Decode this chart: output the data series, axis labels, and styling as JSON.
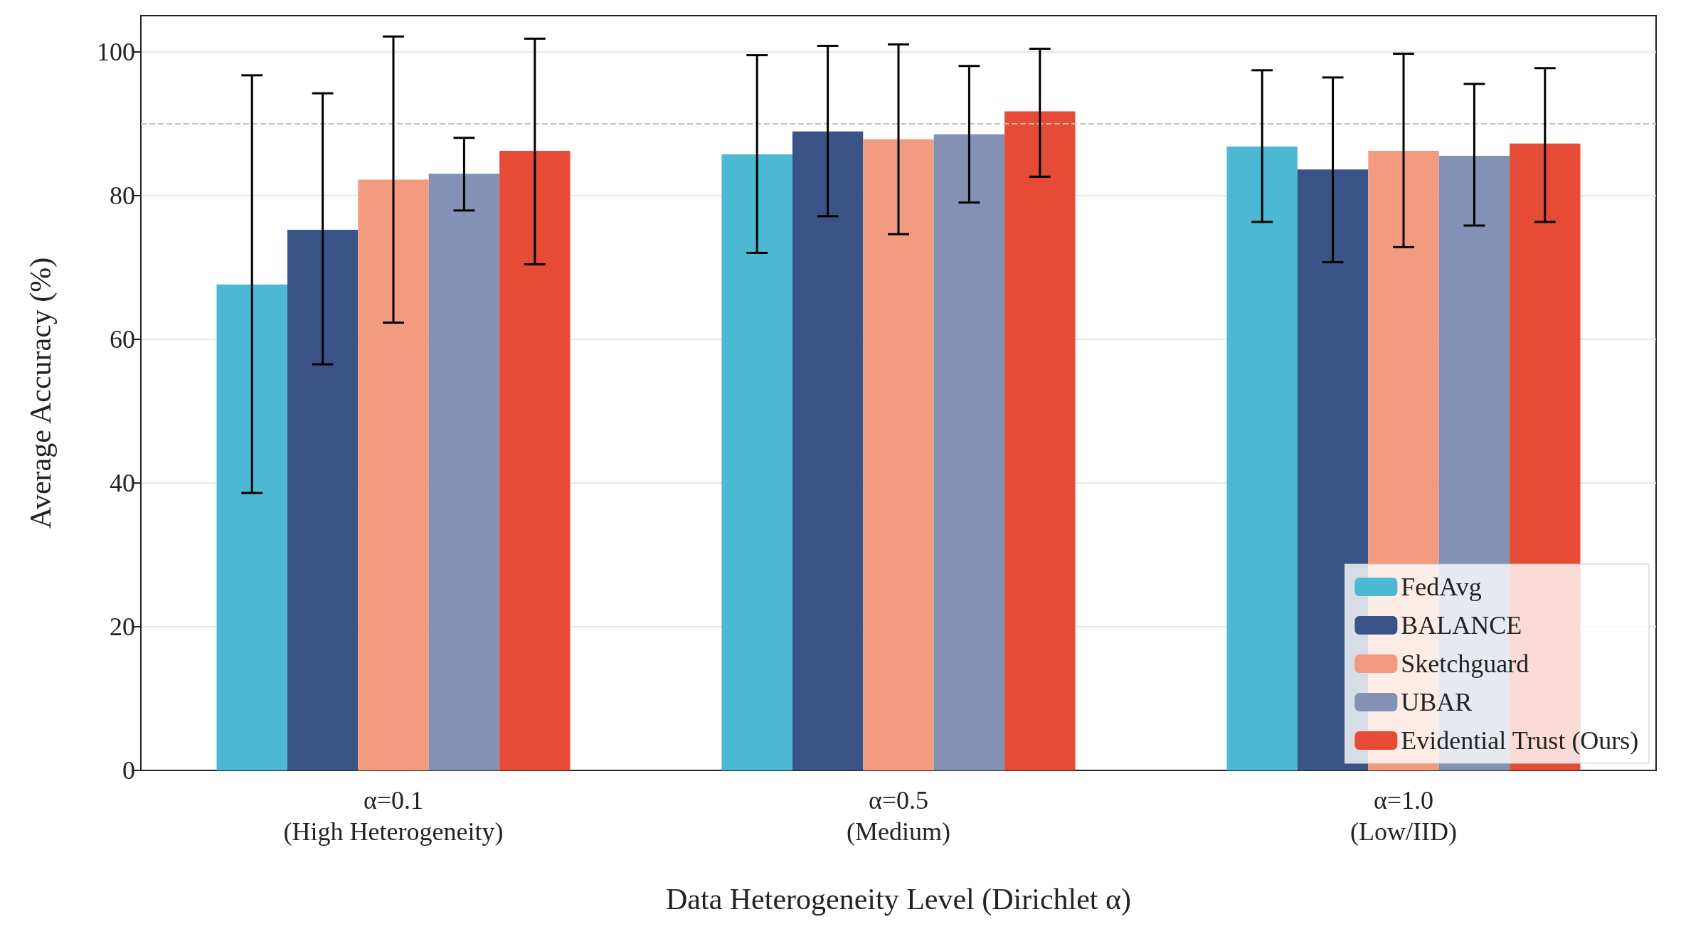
{
  "chart_data": {
    "type": "bar",
    "xlabel": "Data Heterogeneity Level (Dirichlet α)",
    "ylabel": "Average Accuracy (%)",
    "categories": [
      "α=0.1\n(High Heterogeneity)",
      "α=0.5\n(Medium)",
      "α=1.0\n(Low/IID)"
    ],
    "series": [
      {
        "name": "FedAvg",
        "color": "#4cb8d4",
        "values": [
          67.6,
          85.7,
          86.8
        ],
        "errors": [
          [
            38.6,
            96.7
          ],
          [
            72.0,
            99.5
          ],
          [
            76.3,
            97.4
          ]
        ]
      },
      {
        "name": "BALANCE",
        "color": "#3b5488",
        "values": [
          75.2,
          88.9,
          83.6
        ],
        "errors": [
          [
            56.5,
            94.2
          ],
          [
            77.1,
            100.8
          ],
          [
            70.7,
            96.4
          ]
        ]
      },
      {
        "name": "Sketchguard",
        "color": "#f29b7e",
        "values": [
          82.2,
          87.8,
          86.2
        ],
        "errors": [
          [
            62.3,
            102.1
          ],
          [
            74.6,
            101.0
          ],
          [
            72.8,
            99.7
          ]
        ]
      },
      {
        "name": "UBAR",
        "color": "#8391b5",
        "values": [
          83.0,
          88.5,
          85.5
        ],
        "errors": [
          [
            77.9,
            88.0
          ],
          [
            79.0,
            98.0
          ],
          [
            75.8,
            95.5
          ]
        ]
      },
      {
        "name": "Evidential Trust (Ours)",
        "color": "#e64b35",
        "values": [
          86.2,
          91.7,
          87.2
        ],
        "errors": [
          [
            70.4,
            101.8
          ],
          [
            82.6,
            100.4
          ],
          [
            76.3,
            97.7
          ]
        ]
      }
    ],
    "ylim": [
      0,
      105
    ],
    "yticks": [
      0,
      20,
      40,
      60,
      80,
      100
    ],
    "grid": "y",
    "legend": "bottom right",
    "ref_lines": [
      {
        "axis": "y",
        "value": 90,
        "color": "#c0c0c0",
        "line_style": "dashed"
      }
    ]
  }
}
